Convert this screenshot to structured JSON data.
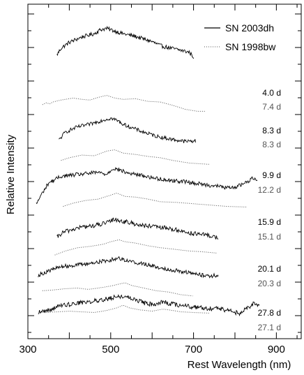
{
  "chart_data": {
    "type": "line",
    "title": "",
    "xlabel": "Rest Wavelength (nm)",
    "ylabel": "Relative Intensity",
    "xlim": [
      300,
      960
    ],
    "x_ticks": [
      300,
      500,
      700,
      900
    ],
    "y_tick_labels": "none",
    "grid": false,
    "legend": {
      "placement": "top-right",
      "entries": [
        {
          "label": "SN 2003dh",
          "style": "solid"
        },
        {
          "label": "SN 1998bw",
          "style": "dotted"
        }
      ]
    },
    "colors": {
      "solid": "#000000",
      "dotted": "#555555"
    },
    "epoch_labels": [
      {
        "sn2003dh": "4.0 d",
        "sn1998bw": "7.4 d"
      },
      {
        "sn2003dh": "8.3 d",
        "sn1998bw": "8.3 d"
      },
      {
        "sn2003dh": "9.9 d",
        "sn1998bw": "12.2 d"
      },
      {
        "sn2003dh": "15.9 d",
        "sn1998bw": "15.1 d"
      },
      {
        "sn2003dh": "20.1 d",
        "sn1998bw": "20.3 d"
      },
      {
        "sn2003dh": "27.8 d",
        "sn1998bw": "27.1 d"
      }
    ],
    "series": [
      {
        "name": "SN 2003dh",
        "epoch": "4.0 d",
        "style": "solid",
        "x_range": [
          370,
          700
        ],
        "noise": 0.3,
        "profile": [
          [
            370,
            -0.6
          ],
          [
            380,
            0.4
          ],
          [
            400,
            1.3
          ],
          [
            430,
            2.1
          ],
          [
            460,
            2.6
          ],
          [
            475,
            3.2
          ],
          [
            490,
            3.4
          ],
          [
            510,
            3.0
          ],
          [
            530,
            2.6
          ],
          [
            560,
            2.2
          ],
          [
            600,
            1.4
          ],
          [
            620,
            0.8
          ],
          [
            640,
            0.5
          ],
          [
            670,
            0.1
          ],
          [
            690,
            -0.2
          ],
          [
            700,
            -0.9
          ]
        ]
      },
      {
        "name": "SN 1998bw",
        "epoch": "7.4 d",
        "style": "dotted",
        "x_range": [
          335,
          730
        ],
        "noise": 0.0,
        "profile": [
          [
            335,
            -0.2
          ],
          [
            345,
            0.1
          ],
          [
            352,
            -0.1
          ],
          [
            360,
            0.2
          ],
          [
            380,
            0.5
          ],
          [
            410,
            0.8
          ],
          [
            430,
            0.6
          ],
          [
            450,
            0.5
          ],
          [
            470,
            0.9
          ],
          [
            490,
            1.2
          ],
          [
            510,
            0.8
          ],
          [
            530,
            0.6
          ],
          [
            560,
            0.7
          ],
          [
            590,
            0.3
          ],
          [
            620,
            0.2
          ],
          [
            650,
            -0.3
          ],
          [
            680,
            -0.9
          ],
          [
            710,
            -1.2
          ],
          [
            730,
            -1.2
          ]
        ]
      },
      {
        "name": "SN 2003dh",
        "epoch": "8.3 d",
        "style": "solid",
        "x_range": [
          375,
          705
        ],
        "noise": 0.28,
        "profile": [
          [
            375,
            -0.6
          ],
          [
            390,
            0.6
          ],
          [
            420,
            1.4
          ],
          [
            450,
            1.8
          ],
          [
            480,
            2.4
          ],
          [
            500,
            2.7
          ],
          [
            515,
            2.4
          ],
          [
            530,
            1.8
          ],
          [
            550,
            1.3
          ],
          [
            580,
            0.6
          ],
          [
            610,
            0.0
          ],
          [
            640,
            -0.4
          ],
          [
            680,
            -0.8
          ],
          [
            705,
            -0.7
          ]
        ]
      },
      {
        "name": "SN 1998bw",
        "epoch": "8.3 d",
        "style": "dotted",
        "x_range": [
          380,
          740
        ],
        "noise": 0.0,
        "profile": [
          [
            380,
            -0.6
          ],
          [
            400,
            -0.2
          ],
          [
            430,
            0.2
          ],
          [
            460,
            0.1
          ],
          [
            490,
            0.8
          ],
          [
            510,
            1.0
          ],
          [
            530,
            0.5
          ],
          [
            560,
            0.3
          ],
          [
            590,
            0.0
          ],
          [
            620,
            -0.2
          ],
          [
            650,
            -0.6
          ],
          [
            690,
            -1.0
          ],
          [
            740,
            -1.2
          ]
        ]
      },
      {
        "name": "SN 2003dh",
        "epoch": "9.9 d",
        "style": "solid",
        "x_range": [
          320,
          855
        ],
        "noise": 0.3,
        "profile": [
          [
            320,
            -3.2
          ],
          [
            335,
            -1.5
          ],
          [
            350,
            0.0
          ],
          [
            380,
            1.0
          ],
          [
            410,
            1.2
          ],
          [
            440,
            1.4
          ],
          [
            470,
            1.6
          ],
          [
            490,
            1.3
          ],
          [
            505,
            2.2
          ],
          [
            520,
            2.0
          ],
          [
            540,
            1.5
          ],
          [
            570,
            1.2
          ],
          [
            600,
            0.8
          ],
          [
            640,
            0.4
          ],
          [
            680,
            0.2
          ],
          [
            720,
            -0.2
          ],
          [
            760,
            -0.5
          ],
          [
            790,
            -0.8
          ],
          [
            810,
            -0.4
          ],
          [
            830,
            0.2
          ],
          [
            845,
            0.8
          ],
          [
            855,
            0.5
          ]
        ]
      },
      {
        "name": "SN 1998bw",
        "epoch": "12.2 d",
        "style": "dotted",
        "x_range": [
          385,
          830
        ],
        "noise": 0.0,
        "profile": [
          [
            385,
            -0.9
          ],
          [
            410,
            -0.4
          ],
          [
            440,
            0.0
          ],
          [
            470,
            0.2
          ],
          [
            500,
            0.8
          ],
          [
            515,
            1.1
          ],
          [
            535,
            0.6
          ],
          [
            560,
            0.5
          ],
          [
            590,
            0.2
          ],
          [
            620,
            -0.2
          ],
          [
            660,
            -0.3
          ],
          [
            700,
            -0.5
          ],
          [
            740,
            -0.7
          ],
          [
            780,
            -0.9
          ],
          [
            830,
            -1.0
          ]
        ]
      },
      {
        "name": "SN 2003dh",
        "epoch": "15.9 d",
        "style": "solid",
        "x_range": [
          370,
          760
        ],
        "noise": 0.34,
        "profile": [
          [
            370,
            -1.4
          ],
          [
            385,
            -0.6
          ],
          [
            400,
            -0.3
          ],
          [
            430,
            0.2
          ],
          [
            460,
            0.4
          ],
          [
            490,
            0.8
          ],
          [
            510,
            1.4
          ],
          [
            525,
            1.1
          ],
          [
            550,
            0.8
          ],
          [
            580,
            0.4
          ],
          [
            610,
            0.2
          ],
          [
            640,
            0.0
          ],
          [
            670,
            -0.4
          ],
          [
            700,
            -0.8
          ],
          [
            730,
            -1.0
          ],
          [
            760,
            -1.4
          ]
        ]
      },
      {
        "name": "SN 1998bw",
        "epoch": "15.1 d",
        "style": "dotted",
        "x_range": [
          365,
          755
        ],
        "noise": 0.0,
        "profile": [
          [
            365,
            -1.6
          ],
          [
            390,
            -1.0
          ],
          [
            420,
            -0.5
          ],
          [
            450,
            -0.3
          ],
          [
            480,
            0.0
          ],
          [
            500,
            0.4
          ],
          [
            520,
            0.7
          ],
          [
            535,
            0.4
          ],
          [
            560,
            0.2
          ],
          [
            590,
            -0.2
          ],
          [
            620,
            -0.5
          ],
          [
            650,
            -0.7
          ],
          [
            690,
            -1.0
          ],
          [
            720,
            -1.1
          ],
          [
            755,
            -1.3
          ]
        ]
      },
      {
        "name": "SN 2003dh",
        "epoch": "20.1 d",
        "style": "solid",
        "x_range": [
          325,
          760
        ],
        "noise": 0.3,
        "profile": [
          [
            325,
            -1.7
          ],
          [
            340,
            -1.3
          ],
          [
            360,
            -0.8
          ],
          [
            380,
            -0.4
          ],
          [
            410,
            -0.2
          ],
          [
            440,
            0.0
          ],
          [
            470,
            0.3
          ],
          [
            500,
            0.6
          ],
          [
            520,
            0.9
          ],
          [
            535,
            0.6
          ],
          [
            560,
            0.2
          ],
          [
            590,
            -0.1
          ],
          [
            620,
            -0.6
          ],
          [
            650,
            -0.9
          ],
          [
            680,
            -1.2
          ],
          [
            710,
            -1.6
          ],
          [
            740,
            -1.8
          ],
          [
            760,
            -1.7
          ]
        ]
      },
      {
        "name": "SN 1998bw",
        "epoch": "20.3 d",
        "style": "dotted",
        "x_range": [
          335,
          700
        ],
        "noise": 0.0,
        "profile": [
          [
            335,
            -1.4
          ],
          [
            360,
            -1.3
          ],
          [
            390,
            -1.1
          ],
          [
            420,
            -1.0
          ],
          [
            445,
            -1.2
          ],
          [
            470,
            -1.0
          ],
          [
            500,
            -0.7
          ],
          [
            520,
            -0.4
          ],
          [
            535,
            -0.2
          ],
          [
            550,
            -0.6
          ],
          [
            580,
            -1.0
          ],
          [
            610,
            -1.4
          ],
          [
            640,
            -1.6
          ],
          [
            670,
            -2.0
          ],
          [
            700,
            -2.2
          ]
        ]
      },
      {
        "name": "SN 2003dh",
        "epoch": "27.8 d",
        "style": "solid",
        "x_range": [
          325,
          860
        ],
        "noise": 0.34,
        "profile": [
          [
            325,
            -1.8
          ],
          [
            350,
            -1.5
          ],
          [
            380,
            -0.8
          ],
          [
            410,
            -0.5
          ],
          [
            440,
            -0.3
          ],
          [
            470,
            0.0
          ],
          [
            500,
            0.3
          ],
          [
            520,
            0.6
          ],
          [
            540,
            0.5
          ],
          [
            560,
            0.1
          ],
          [
            590,
            -0.6
          ],
          [
            610,
            -0.5
          ],
          [
            625,
            -0.2
          ],
          [
            640,
            -0.5
          ],
          [
            670,
            -0.8
          ],
          [
            700,
            -1.0
          ],
          [
            730,
            -1.2
          ],
          [
            760,
            -1.3
          ],
          [
            790,
            -1.6
          ],
          [
            810,
            -2.0
          ],
          [
            830,
            -1.2
          ],
          [
            845,
            -0.5
          ],
          [
            860,
            -0.8
          ]
        ]
      },
      {
        "name": "SN 1998bw",
        "epoch": "27.1 d",
        "style": "dotted",
        "x_range": [
          340,
          740
        ],
        "noise": 0.0,
        "profile": [
          [
            340,
            -1.0
          ],
          [
            370,
            -0.9
          ],
          [
            400,
            -0.8
          ],
          [
            430,
            -0.9
          ],
          [
            460,
            -1.0
          ],
          [
            490,
            -0.7
          ],
          [
            515,
            -0.3
          ],
          [
            530,
            0.1
          ],
          [
            545,
            -0.3
          ],
          [
            570,
            -0.6
          ],
          [
            600,
            -0.8
          ],
          [
            625,
            -0.5
          ],
          [
            640,
            -0.6
          ],
          [
            670,
            -0.9
          ],
          [
            700,
            -1.0
          ],
          [
            740,
            -1.1
          ]
        ]
      }
    ]
  }
}
